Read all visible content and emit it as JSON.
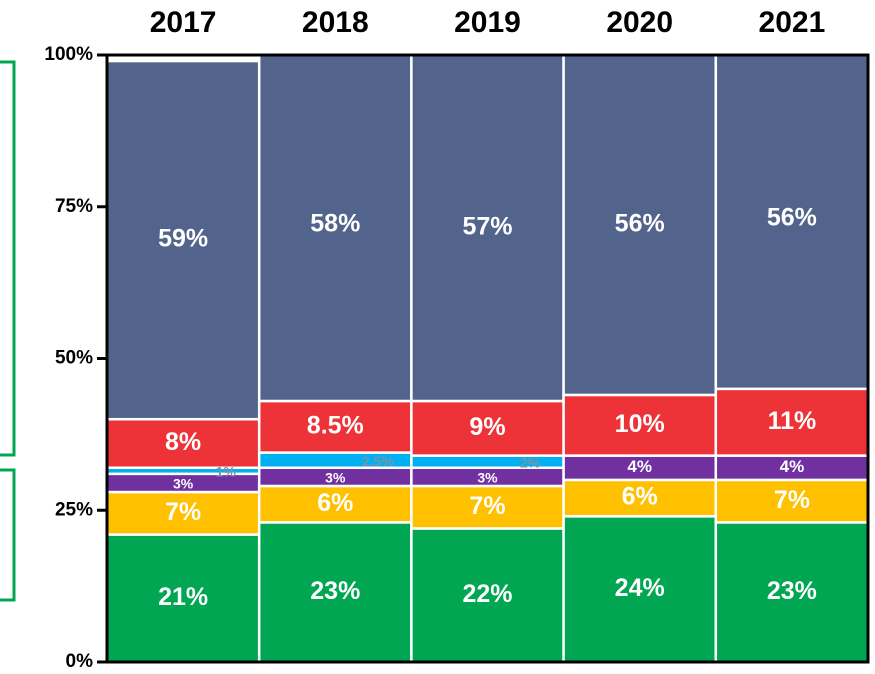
{
  "chart_data": {
    "type": "stacked_bar_100",
    "categories": [
      "2017",
      "2018",
      "2019",
      "2020",
      "2021"
    ],
    "series": [
      {
        "color": "#00a651",
        "values": [
          21,
          23,
          22,
          24,
          23
        ],
        "value_labels": [
          "21%",
          "23%",
          "22%",
          "24%",
          "23%"
        ]
      },
      {
        "color": "#ffc000",
        "values": [
          7,
          6,
          7,
          6,
          7
        ],
        "value_labels": [
          "7%",
          "6%",
          "7%",
          "6%",
          "7%"
        ]
      },
      {
        "color": "#7030a0",
        "values": [
          3,
          3,
          3,
          4,
          4
        ],
        "value_labels": [
          "3%",
          "3%",
          "3%",
          "4%",
          "4%"
        ]
      },
      {
        "color": "#00b0f0",
        "values": [
          1,
          2.5,
          2,
          null,
          null
        ],
        "value_labels": [
          "1%",
          "2.5%",
          "2%",
          null,
          null
        ]
      },
      {
        "color": "#ee3338",
        "values": [
          8,
          8.5,
          9,
          10,
          11
        ],
        "value_labels": [
          "8%",
          "8.5%",
          "9%",
          "10%",
          "11%"
        ]
      },
      {
        "color": "#52648c",
        "values": [
          59,
          58,
          57,
          56,
          56
        ],
        "value_labels": [
          "59%",
          "58%",
          "57%",
          "56%",
          "56%"
        ]
      }
    ],
    "ylim": [
      0,
      100
    ],
    "yticks": [
      {
        "value": 0,
        "label": "0%"
      },
      {
        "value": 25,
        "label": "25%"
      },
      {
        "value": 50,
        "label": "50%"
      },
      {
        "value": 75,
        "label": "75%"
      },
      {
        "value": 100,
        "label": "100%"
      }
    ]
  }
}
